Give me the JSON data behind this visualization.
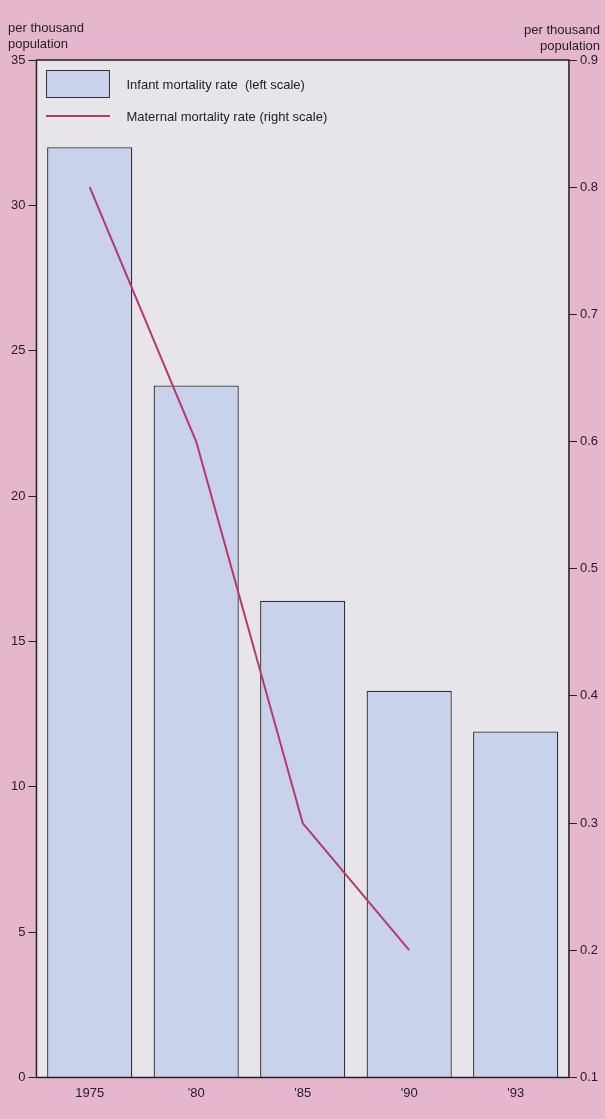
{
  "chart_data": {
    "type": "bar",
    "categories": [
      "1975",
      "'80",
      "'85",
      "'90",
      "'93"
    ],
    "ylabel": "per thousand population",
    "y2label": "per thousand population",
    "series": [
      {
        "name": "Infant mortality rate  (left scale)",
        "color": "#c8d2ea",
        "values": [
          32,
          23.8,
          16.4,
          13.3,
          11.9
        ]
      },
      {
        "name": "Maternal mortality rate (right scale)",
        "type": "line",
        "axis": "y2",
        "color": "#b8386e",
        "values": [
          0.8,
          0.6,
          0.3,
          0.2,
          null
        ]
      }
    ],
    "ylim": [
      0,
      35
    ],
    "yticks": [
      0,
      5,
      10,
      15,
      20,
      25,
      30,
      35
    ],
    "y2lim": [
      0.1,
      0.9
    ],
    "y2ticks": [
      0.1,
      0.2,
      0.3,
      0.4,
      0.5,
      0.6,
      0.7,
      0.8,
      0.9
    ],
    "grid": false,
    "legend": "top left",
    "marker": "none",
    "line_style": "solid"
  }
}
